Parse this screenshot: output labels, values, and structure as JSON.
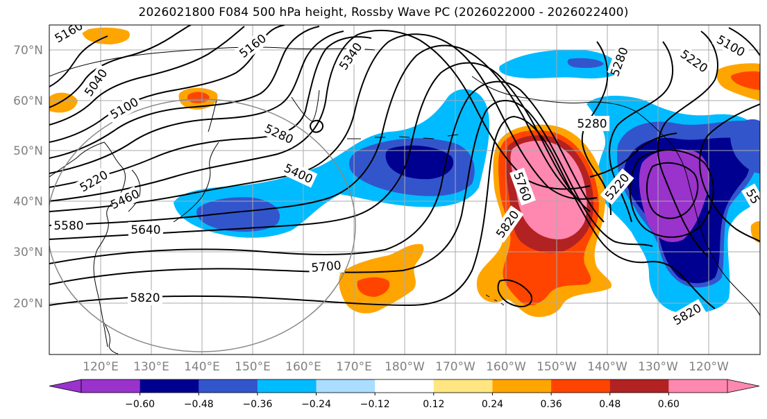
{
  "title": "2026021800 F084 500 hPa height, Rossby Wave PC (2026022000 - 2026022400)",
  "lat_labels": [
    "70°N",
    "60°N",
    "50°N",
    "40°N",
    "30°N",
    "20°N"
  ],
  "lon_labels": [
    "120°E",
    "130°E",
    "140°E",
    "150°E",
    "160°E",
    "170°E",
    "180°W",
    "170°W",
    "160°W",
    "150°W",
    "140°W",
    "130°W",
    "120°W"
  ],
  "contour_labels": [
    {
      "id": "5160",
      "text": "5160"
    },
    {
      "id": "5340",
      "text": "5340"
    },
    {
      "id": "5040",
      "text": "5040"
    },
    {
      "id": "5100",
      "text": "5100"
    },
    {
      "id": "5280a",
      "text": "5280"
    },
    {
      "id": "5220a",
      "text": "5220"
    },
    {
      "id": "5400",
      "text": "5400"
    },
    {
      "id": "5460",
      "text": "5460"
    },
    {
      "id": "5580",
      "text": "5580"
    },
    {
      "id": "5640",
      "text": "5640"
    },
    {
      "id": "5700",
      "text": "5700"
    },
    {
      "id": "5820a",
      "text": "5820"
    },
    {
      "id": "5760",
      "text": "5760"
    },
    {
      "id": "5820b",
      "text": "5820"
    },
    {
      "id": "5280b",
      "text": "5280"
    },
    {
      "id": "5220b",
      "text": "5220"
    },
    {
      "id": "5280c",
      "text": "5280"
    },
    {
      "id": "5220c",
      "text": "5220"
    },
    {
      "id": "5160b",
      "text": "5160"
    },
    {
      "id": "5820c",
      "text": "5820"
    },
    {
      "id": "5100b",
      "text": "5100"
    },
    {
      "id": "55x",
      "text": "55"
    }
  ],
  "colorbar": {
    "ticks": [
      "−0.60",
      "−0.48",
      "−0.36",
      "−0.24",
      "−0.12",
      "0.12",
      "0.24",
      "0.36",
      "0.48",
      "0.60"
    ],
    "colors": [
      "#9933cc",
      "#000090",
      "#3355cc",
      "#00bbff",
      "#aaddff",
      "#ffffff",
      "#ffe680",
      "#ffa500",
      "#ff4400",
      "#b22222",
      "#ff88b0"
    ],
    "extend_min_color": "#9933cc",
    "extend_max_color": "#ff88b0"
  },
  "palette": {
    "purple": "#9933cc",
    "navy": "#000090",
    "royal": "#3355cc",
    "sky": "#00bbff",
    "pale": "#aaddff",
    "yellow": "#ffe680",
    "orange": "#ffa500",
    "redorange": "#ff4400",
    "crimson": "#b22222",
    "pink": "#ff88b0"
  }
}
